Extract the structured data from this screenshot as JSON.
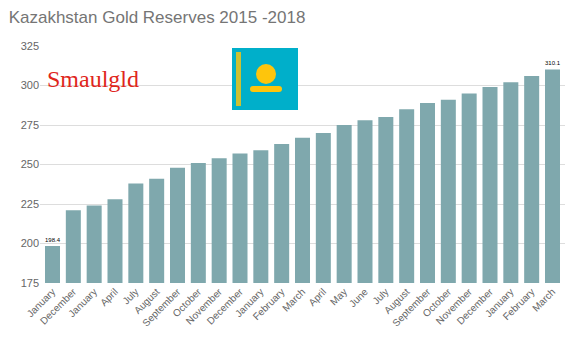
{
  "chart_data": {
    "type": "bar",
    "title": "Kazakhstan Gold Reserves 2015 -2018",
    "logo": "Smaulgld",
    "categories": [
      "January",
      "December",
      "January",
      "April",
      "July",
      "August",
      "September",
      "October",
      "November",
      "December",
      "January",
      "February",
      "March",
      "April",
      "May",
      "June",
      "July",
      "August",
      "September",
      "October",
      "November",
      "December",
      "January",
      "February",
      "March"
    ],
    "values": [
      198.4,
      221,
      224,
      228,
      238,
      241,
      248,
      251,
      254,
      257,
      259,
      263,
      267,
      270,
      275,
      278,
      280,
      285,
      289,
      291,
      295,
      299,
      302,
      306,
      310.1
    ],
    "value_labels": [
      "198.4",
      null,
      null,
      null,
      null,
      null,
      null,
      null,
      null,
      null,
      null,
      null,
      null,
      null,
      null,
      null,
      null,
      null,
      null,
      null,
      null,
      null,
      null,
      null,
      "310.1"
    ],
    "color": "#7fa8ad",
    "ylim": [
      175,
      325
    ],
    "yticks": [
      175,
      200,
      225,
      250,
      275,
      300,
      325
    ],
    "grid": true
  }
}
